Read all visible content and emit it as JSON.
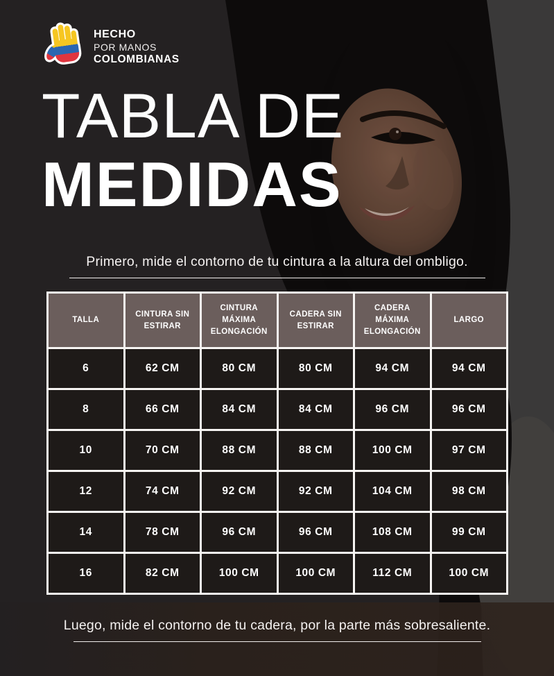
{
  "logo": {
    "line1": "HECHO",
    "line2": "POR MANOS",
    "line3": "COLOMBIANAS",
    "icon": "colombian-flag-hand-icon"
  },
  "title": {
    "line1": "TABLA DE",
    "line2": "MEDIDAS"
  },
  "instructions": {
    "top": "Primero, mide  el contorno de tu cintura a la altura del ombligo.",
    "bottom": "Luego, mide el contorno de tu cadera, por la parte más sobresaliente."
  },
  "table": {
    "headers": [
      "TALLA",
      "CINTURA SIN ESTIRAR",
      "CINTURA MÁXIMA ELONGACIÓN",
      "CADERA SIN ESTIRAR",
      "CADERA MÁXIMA ELONGACIÓN",
      "LARGO"
    ],
    "rows": [
      [
        "6",
        "62 CM",
        "80 CM",
        "80 CM",
        "94 CM",
        "94 CM"
      ],
      [
        "8",
        "66 CM",
        "84 CM",
        "84 CM",
        "96 CM",
        "96 CM"
      ],
      [
        "10",
        "70 CM",
        "88 CM",
        "88 CM",
        "100 CM",
        "97 CM"
      ],
      [
        "12",
        "74 CM",
        "92 CM",
        "92 CM",
        "104 CM",
        "98 CM"
      ],
      [
        "14",
        "78 CM",
        "96 CM",
        "96 CM",
        "108 CM",
        "99 CM"
      ],
      [
        "16",
        "82 CM",
        "100 CM",
        "100 CM",
        "112 CM",
        "100 CM"
      ]
    ]
  },
  "chart_data": {
    "type": "table",
    "title": "TABLA DE MEDIDAS",
    "columns": [
      "TALLA",
      "CINTURA SIN ESTIRAR",
      "CINTURA MÁXIMA ELONGACIÓN",
      "CADERA SIN ESTIRAR",
      "CADERA MÁXIMA ELONGACIÓN",
      "LARGO"
    ],
    "rows": [
      [
        "6",
        "62 CM",
        "80 CM",
        "80 CM",
        "94 CM",
        "94 CM"
      ],
      [
        "8",
        "66 CM",
        "84 CM",
        "84 CM",
        "96 CM",
        "96 CM"
      ],
      [
        "10",
        "70 CM",
        "88 CM",
        "88 CM",
        "100 CM",
        "97 CM"
      ],
      [
        "12",
        "74 CM",
        "92 CM",
        "92 CM",
        "104 CM",
        "98 CM"
      ],
      [
        "14",
        "78 CM",
        "96 CM",
        "96 CM",
        "108 CM",
        "99 CM"
      ],
      [
        "16",
        "82 CM",
        "100 CM",
        "100 CM",
        "112 CM",
        "100 CM"
      ]
    ]
  },
  "colors": {
    "background": "#242122",
    "header_cell": "#6b5e5c",
    "data_cell": "#1e1a18",
    "table_border": "#f6f4f2",
    "text": "#ffffff",
    "flag_yellow": "#f6c621",
    "flag_blue": "#2b66b1",
    "flag_red": "#e0353f"
  }
}
